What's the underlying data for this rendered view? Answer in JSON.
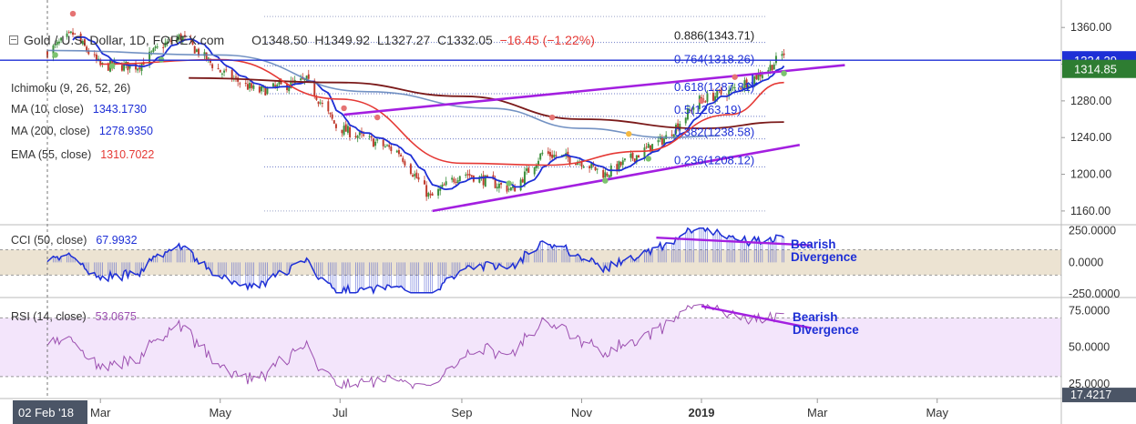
{
  "header": {
    "symbol": "Gold / U.S. Dollar, 1D, FOREX.com",
    "open_label": "O",
    "open": "1348.50",
    "high_label": "H",
    "high": "1349.92",
    "low_label": "L",
    "low": "1327.27",
    "close_label": "C",
    "close": "1332.05",
    "change": "−16.45 (−1.22%)"
  },
  "legend": {
    "ichimoku": {
      "label": "Ichimoku (9, 26, 52, 26)",
      "color": "#8d8d8d"
    },
    "ma10": {
      "label": "MA (10, close)",
      "value": "1343.1730",
      "color": "#1e2fd6"
    },
    "ma200": {
      "label": "MA (200, close)",
      "value": "1278.9350",
      "color": "#7b1a1a"
    },
    "ema55": {
      "label": "EMA (55, close)",
      "value": "1310.7022",
      "color": "#e53935"
    },
    "cci": {
      "label": "CCI (50, close)",
      "value": "67.9932",
      "color": "#1e2fd6"
    },
    "rsi": {
      "label": "RSI (14, close)",
      "value": "53.0675",
      "color": "#9c4fb0"
    }
  },
  "price_badges": [
    {
      "value": "1324.29",
      "bg": "#1e2fd6"
    },
    {
      "value": "1314.85",
      "bg": "#2e7d32"
    }
  ],
  "fib_levels": [
    {
      "label": "0.886(1343.71)",
      "price": 1343.71
    },
    {
      "label": "0.764(1318.26)",
      "price": 1318.26
    },
    {
      "label": "0.618(1287.81)",
      "price": 1287.81
    },
    {
      "label": "0.5(1263.19)",
      "price": 1263.19
    },
    {
      "label": "0.382(1238.58)",
      "price": 1238.58
    },
    {
      "label": "0.236(1208.12)",
      "price": 1208.12
    }
  ],
  "annotations": {
    "cci_divergence": [
      "Bearish",
      "Divergence"
    ],
    "rsi_divergence": [
      "Bearish",
      "Divergence"
    ],
    "color": "#1e2fd6"
  },
  "time_axis": {
    "labels": [
      "02 Feb '18",
      "Mar",
      "May",
      "Jul",
      "Sep",
      "Nov",
      "2019",
      "Mar",
      "May"
    ]
  },
  "chart_data": {
    "type": "candlestick",
    "price_axis": {
      "ticks": [
        "1360.00",
        "1320.00",
        "1280.00",
        "1240.00",
        "1200.00",
        "1160.00"
      ],
      "range": [
        1146,
        1383
      ]
    },
    "cci_axis": {
      "ticks": [
        "250.0000",
        "0.0000",
        "-250.0000"
      ],
      "range": [
        -270,
        290
      ],
      "band": [
        -100,
        100
      ]
    },
    "rsi_axis": {
      "ticks": [
        "75.0000",
        "50.0000",
        "25.0000",
        "17.4217"
      ],
      "range": [
        15,
        82
      ],
      "band": [
        30,
        70
      ]
    },
    "horizontal_line": {
      "price": 1324.29,
      "color": "#1e2fd6"
    },
    "close_anchors": [
      [
        "2018-02-02",
        1333
      ],
      [
        "2018-02-15",
        1353
      ],
      [
        "2018-03-01",
        1318
      ],
      [
        "2018-03-20",
        1318
      ],
      [
        "2018-04-01",
        1340
      ],
      [
        "2018-04-11",
        1350
      ],
      [
        "2018-05-01",
        1312
      ],
      [
        "2018-05-20",
        1290
      ],
      [
        "2018-06-14",
        1302
      ],
      [
        "2018-06-29",
        1252
      ],
      [
        "2018-07-31",
        1224
      ],
      [
        "2018-08-16",
        1174
      ],
      [
        "2018-09-01",
        1202
      ],
      [
        "2018-09-27",
        1183
      ],
      [
        "2018-10-12",
        1223
      ],
      [
        "2018-10-31",
        1215
      ],
      [
        "2018-11-13",
        1200
      ],
      [
        "2018-11-30",
        1222
      ],
      [
        "2018-12-14",
        1240
      ],
      [
        "2018-12-31",
        1281
      ],
      [
        "2019-01-15",
        1290
      ],
      [
        "2019-01-25",
        1302
      ],
      [
        "2019-02-04",
        1315
      ],
      [
        "2019-02-12",
        1332
      ]
    ],
    "indicator_lines": {
      "ma200": [
        [
          "2018-04-15",
          1305
        ],
        [
          "2018-07-01",
          1300
        ],
        [
          "2018-09-01",
          1285
        ],
        [
          "2018-11-01",
          1260
        ],
        [
          "2019-01-01",
          1250
        ],
        [
          "2019-02-12",
          1257
        ]
      ],
      "ema55": [
        [
          "2018-03-01",
          1320
        ],
        [
          "2018-05-01",
          1325
        ],
        [
          "2018-07-01",
          1282
        ],
        [
          "2018-09-01",
          1212
        ],
        [
          "2018-10-15",
          1210
        ],
        [
          "2018-12-01",
          1225
        ],
        [
          "2019-01-15",
          1265
        ],
        [
          "2019-02-12",
          1300
        ]
      ],
      "cloud_line": [
        [
          "2018-02-02",
          1335
        ],
        [
          "2018-05-01",
          1330
        ],
        [
          "2018-07-15",
          1290
        ],
        [
          "2018-09-15",
          1272
        ],
        [
          "2018-11-01",
          1250
        ],
        [
          "2018-12-15",
          1240
        ],
        [
          "2019-01-10",
          1242
        ]
      ]
    },
    "trendlines_price": [
      {
        "from": [
          "2018-07-03",
          1265
        ],
        "to": [
          "2019-03-15",
          1319
        ],
        "color": "#a31fe0"
      },
      {
        "from": [
          "2018-08-17",
          1160
        ],
        "to": [
          "2019-02-20",
          1232
        ],
        "color": "#a31fe0"
      }
    ],
    "cci_trendline": {
      "from": [
        "2018-12-09",
        195
      ],
      "to": [
        "2019-02-26",
        135
      ]
    },
    "rsi_trendline": {
      "from": [
        "2019-01-01",
        78
      ],
      "to": [
        "2019-02-26",
        63
      ]
    }
  }
}
